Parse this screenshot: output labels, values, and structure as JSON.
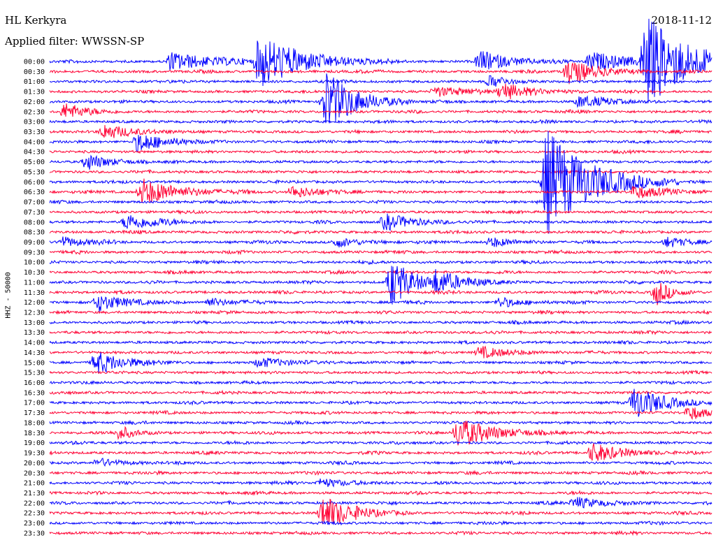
{
  "header": {
    "station": "HL Kerkyra",
    "filter_prefix": "Applied filter:",
    "filter": "WWSSN-SP",
    "date": "2018-11-12",
    "channel": "HHZ - 50000"
  },
  "colors": {
    "even": "#0000ff",
    "odd": "#ff0033"
  },
  "chart_data": {
    "type": "line",
    "title": "HL Kerkyra",
    "ylabel": "HHZ - 50000",
    "row_minutes": 30,
    "rows": [
      {
        "label": "00:00",
        "color": "blue"
      },
      {
        "label": "00:30",
        "color": "red"
      },
      {
        "label": "01:00",
        "color": "blue"
      },
      {
        "label": "01:30",
        "color": "red"
      },
      {
        "label": "02:00",
        "color": "blue"
      },
      {
        "label": "02:30",
        "color": "red"
      },
      {
        "label": "03:00",
        "color": "blue"
      },
      {
        "label": "03:30",
        "color": "red"
      },
      {
        "label": "04:00",
        "color": "blue"
      },
      {
        "label": "04:30",
        "color": "red"
      },
      {
        "label": "05:00",
        "color": "blue"
      },
      {
        "label": "05:30",
        "color": "red"
      },
      {
        "label": "06:00",
        "color": "blue"
      },
      {
        "label": "06:30",
        "color": "red"
      },
      {
        "label": "07:00",
        "color": "blue"
      },
      {
        "label": "07:30",
        "color": "red"
      },
      {
        "label": "08:00",
        "color": "blue"
      },
      {
        "label": "08:30",
        "color": "red"
      },
      {
        "label": "09:00",
        "color": "blue"
      },
      {
        "label": "09:30",
        "color": "red"
      },
      {
        "label": "10:00",
        "color": "blue"
      },
      {
        "label": "10:30",
        "color": "red"
      },
      {
        "label": "11:00",
        "color": "blue"
      },
      {
        "label": "11:30",
        "color": "red"
      },
      {
        "label": "12:00",
        "color": "blue"
      },
      {
        "label": "12:30",
        "color": "red"
      },
      {
        "label": "13:00",
        "color": "blue"
      },
      {
        "label": "13:30",
        "color": "red"
      },
      {
        "label": "14:00",
        "color": "blue"
      },
      {
        "label": "14:30",
        "color": "red"
      },
      {
        "label": "15:00",
        "color": "blue"
      },
      {
        "label": "15:30",
        "color": "red"
      },
      {
        "label": "16:00",
        "color": "blue"
      },
      {
        "label": "16:30",
        "color": "red"
      },
      {
        "label": "17:00",
        "color": "blue"
      },
      {
        "label": "17:30",
        "color": "red"
      },
      {
        "label": "18:00",
        "color": "blue"
      },
      {
        "label": "18:30",
        "color": "red"
      },
      {
        "label": "19:00",
        "color": "blue"
      },
      {
        "label": "19:30",
        "color": "red"
      },
      {
        "label": "20:00",
        "color": "blue"
      },
      {
        "label": "20:30",
        "color": "red"
      },
      {
        "label": "21:00",
        "color": "blue"
      },
      {
        "label": "21:30",
        "color": "red"
      },
      {
        "label": "22:00",
        "color": "blue"
      },
      {
        "label": "22:30",
        "color": "red"
      },
      {
        "label": "23:00",
        "color": "blue"
      },
      {
        "label": "23:30",
        "color": "red"
      }
    ],
    "events": [
      {
        "row": 0,
        "minute": 5.5,
        "amp": 1.1,
        "dur": 3
      },
      {
        "row": 0,
        "minute": 9.5,
        "amp": 3.2,
        "dur": 3
      },
      {
        "row": 0,
        "minute": 19.5,
        "amp": 1.3,
        "dur": 2
      },
      {
        "row": 0,
        "minute": 24.5,
        "amp": 1.1,
        "dur": 3
      },
      {
        "row": 0,
        "minute": 27,
        "amp": 5.5,
        "dur": 3
      },
      {
        "row": 1,
        "minute": 23.5,
        "amp": 1.5,
        "dur": 2
      },
      {
        "row": 2,
        "minute": 20,
        "amp": 0.7,
        "dur": 1
      },
      {
        "row": 3,
        "minute": 20.5,
        "amp": 1.0,
        "dur": 2
      },
      {
        "row": 3,
        "minute": 17.5,
        "amp": 0.6,
        "dur": 2
      },
      {
        "row": 4,
        "minute": 12.5,
        "amp": 3.8,
        "dur": 2
      },
      {
        "row": 4,
        "minute": 24,
        "amp": 0.7,
        "dur": 2
      },
      {
        "row": 5,
        "minute": 0.7,
        "amp": 1.0,
        "dur": 1.5
      },
      {
        "row": 7,
        "minute": 2.5,
        "amp": 0.9,
        "dur": 2
      },
      {
        "row": 8,
        "minute": 4,
        "amp": 1.2,
        "dur": 2
      },
      {
        "row": 10,
        "minute": 1.7,
        "amp": 1.0,
        "dur": 1.5
      },
      {
        "row": 12,
        "minute": 22.5,
        "amp": 6.5,
        "dur": 3
      },
      {
        "row": 13,
        "minute": 4.2,
        "amp": 1.6,
        "dur": 2.5
      },
      {
        "row": 13,
        "minute": 26.5,
        "amp": 0.8,
        "dur": 2
      },
      {
        "row": 13,
        "minute": 11,
        "amp": 0.7,
        "dur": 2
      },
      {
        "row": 16,
        "minute": 3.5,
        "amp": 1.0,
        "dur": 2
      },
      {
        "row": 16,
        "minute": 15.2,
        "amp": 1.0,
        "dur": 2
      },
      {
        "row": 18,
        "minute": 0.6,
        "amp": 0.6,
        "dur": 1.5
      },
      {
        "row": 18,
        "minute": 13,
        "amp": 0.6,
        "dur": 1.5
      },
      {
        "row": 18,
        "minute": 20,
        "amp": 0.6,
        "dur": 1.5
      },
      {
        "row": 18,
        "minute": 28,
        "amp": 0.6,
        "dur": 1.5
      },
      {
        "row": 22,
        "minute": 15.5,
        "amp": 3.0,
        "dur": 1.5
      },
      {
        "row": 22,
        "minute": 17.5,
        "amp": 1.2,
        "dur": 2
      },
      {
        "row": 23,
        "minute": 27.5,
        "amp": 1.5,
        "dur": 1
      },
      {
        "row": 24,
        "minute": 2.2,
        "amp": 1.0,
        "dur": 2
      },
      {
        "row": 24,
        "minute": 7.2,
        "amp": 0.5,
        "dur": 1.5
      },
      {
        "row": 24,
        "minute": 20.4,
        "amp": 0.6,
        "dur": 1.5
      },
      {
        "row": 29,
        "minute": 19.5,
        "amp": 0.7,
        "dur": 2
      },
      {
        "row": 30,
        "minute": 2.1,
        "amp": 1.4,
        "dur": 2
      },
      {
        "row": 30,
        "minute": 9.5,
        "amp": 0.6,
        "dur": 2
      },
      {
        "row": 34,
        "minute": 26.5,
        "amp": 2.0,
        "dur": 2
      },
      {
        "row": 35,
        "minute": 29,
        "amp": 0.9,
        "dur": 1.2
      },
      {
        "row": 37,
        "minute": 3.2,
        "amp": 0.8,
        "dur": 1
      },
      {
        "row": 37,
        "minute": 18.5,
        "amp": 1.8,
        "dur": 2.5
      },
      {
        "row": 39,
        "minute": 24.6,
        "amp": 1.2,
        "dur": 2
      },
      {
        "row": 40,
        "minute": 2.2,
        "amp": 0.5,
        "dur": 1.5
      },
      {
        "row": 42,
        "minute": 12.3,
        "amp": 0.5,
        "dur": 2
      },
      {
        "row": 44,
        "minute": 23.8,
        "amp": 0.7,
        "dur": 2
      },
      {
        "row": 45,
        "minute": 12.4,
        "amp": 2.1,
        "dur": 2
      }
    ]
  }
}
